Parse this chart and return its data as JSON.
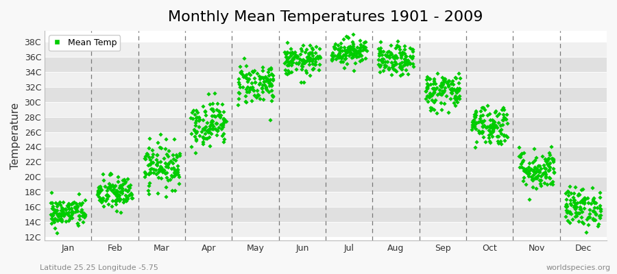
{
  "title": "Monthly Mean Temperatures 1901 - 2009",
  "ylabel": "Temperature",
  "xlabel_labels": [
    "Jan",
    "Feb",
    "Mar",
    "Apr",
    "May",
    "Jun",
    "Jul",
    "Aug",
    "Sep",
    "Oct",
    "Nov",
    "Dec"
  ],
  "ytick_labels": [
    "12C",
    "14C",
    "16C",
    "18C",
    "20C",
    "22C",
    "24C",
    "26C",
    "28C",
    "30C",
    "32C",
    "34C",
    "36C",
    "38C"
  ],
  "ytick_values": [
    12,
    14,
    16,
    18,
    20,
    22,
    24,
    26,
    28,
    30,
    32,
    34,
    36,
    38
  ],
  "ylim": [
    11.5,
    39.5
  ],
  "dot_color": "#00CC00",
  "dot_size": 10,
  "background_color": "#f8f8f8",
  "plot_bg_color": "#ffffff",
  "band_color_light": "#f0f0f0",
  "band_color_dark": "#e0e0e0",
  "dashed_color": "#777777",
  "legend_label": "Mean Temp",
  "subtitle_left": "Latitude 25.25 Longitude -5.75",
  "subtitle_right": "worldspecies.org",
  "monthly_means": [
    15.2,
    17.8,
    21.5,
    27.2,
    32.5,
    35.5,
    36.8,
    35.5,
    31.5,
    27.0,
    21.0,
    16.0
  ],
  "monthly_stds": [
    1.0,
    1.2,
    1.5,
    1.5,
    1.4,
    1.0,
    0.9,
    1.0,
    1.3,
    1.4,
    1.4,
    1.3
  ],
  "n_years": 109,
  "title_fontsize": 16,
  "axis_label_fontsize": 11,
  "tick_fontsize": 9,
  "subtitle_fontsize": 8
}
